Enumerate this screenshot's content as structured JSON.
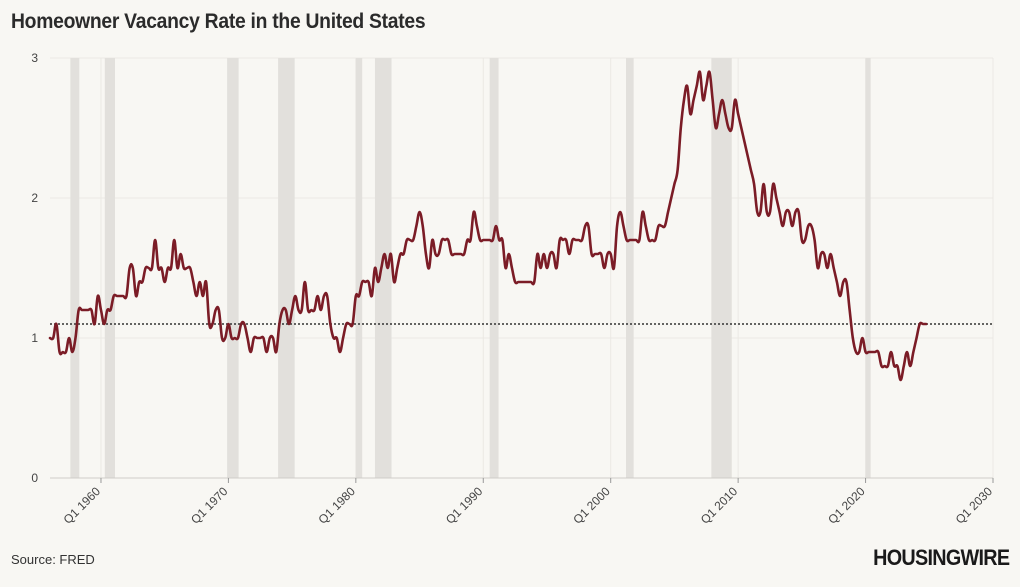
{
  "title": "Homeowner Vacancy Rate in the United States",
  "source": "Source: FRED",
  "brand": "HOUSINGWIRE",
  "colors": {
    "line": "#7b1c26",
    "recession": "#e2e0dc",
    "reference": "#333333",
    "grid": "#ebe9e4",
    "background": "#f8f7f3"
  },
  "chart_data": {
    "type": "line",
    "title": "Homeowner Vacancy Rate in the United States",
    "xlabel": "",
    "ylabel": "",
    "xlim": [
      1956,
      2030
    ],
    "ylim": [
      0,
      3
    ],
    "grid": true,
    "yticks": [
      0,
      1,
      2,
      3
    ],
    "xticks": [
      {
        "value": 1960,
        "label": "Q1 1960"
      },
      {
        "value": 1970,
        "label": "Q1 1970"
      },
      {
        "value": 1980,
        "label": "Q1 1980"
      },
      {
        "value": 1990,
        "label": "Q1 1990"
      },
      {
        "value": 2000,
        "label": "Q1 2000"
      },
      {
        "value": 2010,
        "label": "Q1 2010"
      },
      {
        "value": 2020,
        "label": "Q1 2020"
      },
      {
        "value": 2030,
        "label": "Q1 2030"
      }
    ],
    "reference_line": {
      "y": 1.1,
      "style": "dotted"
    },
    "recessions": [
      [
        1957.6,
        1958.3
      ],
      [
        1960.3,
        1961.1
      ],
      [
        1969.9,
        1970.8
      ],
      [
        1973.9,
        1975.2
      ],
      [
        1980.0,
        1980.5
      ],
      [
        1981.5,
        1982.8
      ],
      [
        1990.5,
        1991.2
      ],
      [
        2001.2,
        2001.8
      ],
      [
        2007.9,
        2009.5
      ],
      [
        2020.0,
        2020.4
      ]
    ],
    "series": [
      {
        "name": "Homeowner Vacancy Rate",
        "points": [
          [
            1956.0,
            1.0
          ],
          [
            1956.25,
            1.0
          ],
          [
            1956.5,
            1.1
          ],
          [
            1956.75,
            0.9
          ],
          [
            1957.0,
            0.9
          ],
          [
            1957.25,
            0.9
          ],
          [
            1957.5,
            1.0
          ],
          [
            1957.75,
            0.9
          ],
          [
            1958.0,
            1.0
          ],
          [
            1958.25,
            1.2
          ],
          [
            1958.5,
            1.2
          ],
          [
            1958.75,
            1.2
          ],
          [
            1959.0,
            1.2
          ],
          [
            1959.25,
            1.2
          ],
          [
            1959.5,
            1.1
          ],
          [
            1959.75,
            1.3
          ],
          [
            1960.0,
            1.2
          ],
          [
            1960.25,
            1.1
          ],
          [
            1960.5,
            1.2
          ],
          [
            1960.75,
            1.2
          ],
          [
            1961.0,
            1.3
          ],
          [
            1961.25,
            1.3
          ],
          [
            1961.5,
            1.3
          ],
          [
            1961.75,
            1.3
          ],
          [
            1962.0,
            1.3
          ],
          [
            1962.25,
            1.5
          ],
          [
            1962.5,
            1.5
          ],
          [
            1962.75,
            1.3
          ],
          [
            1963.0,
            1.4
          ],
          [
            1963.25,
            1.4
          ],
          [
            1963.5,
            1.5
          ],
          [
            1963.75,
            1.5
          ],
          [
            1964.0,
            1.5
          ],
          [
            1964.25,
            1.7
          ],
          [
            1964.5,
            1.5
          ],
          [
            1964.75,
            1.5
          ],
          [
            1965.0,
            1.4
          ],
          [
            1965.25,
            1.5
          ],
          [
            1965.5,
            1.5
          ],
          [
            1965.75,
            1.7
          ],
          [
            1966.0,
            1.5
          ],
          [
            1966.25,
            1.6
          ],
          [
            1966.5,
            1.5
          ],
          [
            1966.75,
            1.5
          ],
          [
            1967.0,
            1.5
          ],
          [
            1967.25,
            1.4
          ],
          [
            1967.5,
            1.3
          ],
          [
            1967.75,
            1.4
          ],
          [
            1968.0,
            1.3
          ],
          [
            1968.25,
            1.4
          ],
          [
            1968.5,
            1.1
          ],
          [
            1968.75,
            1.1
          ],
          [
            1969.0,
            1.2
          ],
          [
            1969.25,
            1.2
          ],
          [
            1969.5,
            1.0
          ],
          [
            1969.75,
            1.0
          ],
          [
            1970.0,
            1.1
          ],
          [
            1970.25,
            1.0
          ],
          [
            1970.5,
            1.0
          ],
          [
            1970.75,
            1.0
          ],
          [
            1971.0,
            1.1
          ],
          [
            1971.25,
            1.1
          ],
          [
            1971.5,
            1.0
          ],
          [
            1971.75,
            0.9
          ],
          [
            1972.0,
            1.0
          ],
          [
            1972.25,
            1.0
          ],
          [
            1972.5,
            1.0
          ],
          [
            1972.75,
            1.0
          ],
          [
            1973.0,
            0.9
          ],
          [
            1973.25,
            1.0
          ],
          [
            1973.5,
            1.0
          ],
          [
            1973.75,
            0.9
          ],
          [
            1974.0,
            1.1
          ],
          [
            1974.25,
            1.2
          ],
          [
            1974.5,
            1.2
          ],
          [
            1974.75,
            1.1
          ],
          [
            1975.0,
            1.2
          ],
          [
            1975.25,
            1.3
          ],
          [
            1975.5,
            1.2
          ],
          [
            1975.75,
            1.2
          ],
          [
            1976.0,
            1.4
          ],
          [
            1976.25,
            1.2
          ],
          [
            1976.5,
            1.2
          ],
          [
            1976.75,
            1.2
          ],
          [
            1977.0,
            1.3
          ],
          [
            1977.25,
            1.2
          ],
          [
            1977.5,
            1.3
          ],
          [
            1977.75,
            1.3
          ],
          [
            1978.0,
            1.1
          ],
          [
            1978.25,
            1.0
          ],
          [
            1978.5,
            1.0
          ],
          [
            1978.75,
            0.9
          ],
          [
            1979.0,
            1.0
          ],
          [
            1979.25,
            1.1
          ],
          [
            1979.5,
            1.1
          ],
          [
            1979.75,
            1.1
          ],
          [
            1980.0,
            1.3
          ],
          [
            1980.25,
            1.3
          ],
          [
            1980.5,
            1.4
          ],
          [
            1980.75,
            1.4
          ],
          [
            1981.0,
            1.4
          ],
          [
            1981.25,
            1.3
          ],
          [
            1981.5,
            1.5
          ],
          [
            1981.75,
            1.4
          ],
          [
            1982.0,
            1.5
          ],
          [
            1982.25,
            1.6
          ],
          [
            1982.5,
            1.5
          ],
          [
            1982.75,
            1.6
          ],
          [
            1983.0,
            1.4
          ],
          [
            1983.25,
            1.5
          ],
          [
            1983.5,
            1.6
          ],
          [
            1983.75,
            1.6
          ],
          [
            1984.0,
            1.7
          ],
          [
            1984.25,
            1.7
          ],
          [
            1984.5,
            1.7
          ],
          [
            1984.75,
            1.8
          ],
          [
            1985.0,
            1.9
          ],
          [
            1985.25,
            1.8
          ],
          [
            1985.5,
            1.6
          ],
          [
            1985.75,
            1.5
          ],
          [
            1986.0,
            1.7
          ],
          [
            1986.25,
            1.6
          ],
          [
            1986.5,
            1.6
          ],
          [
            1986.75,
            1.7
          ],
          [
            1987.0,
            1.7
          ],
          [
            1987.25,
            1.7
          ],
          [
            1987.5,
            1.6
          ],
          [
            1987.75,
            1.6
          ],
          [
            1988.0,
            1.6
          ],
          [
            1988.25,
            1.6
          ],
          [
            1988.5,
            1.6
          ],
          [
            1988.75,
            1.7
          ],
          [
            1989.0,
            1.7
          ],
          [
            1989.25,
            1.9
          ],
          [
            1989.5,
            1.8
          ],
          [
            1989.75,
            1.7
          ],
          [
            1990.0,
            1.7
          ],
          [
            1990.25,
            1.7
          ],
          [
            1990.5,
            1.7
          ],
          [
            1990.75,
            1.7
          ],
          [
            1991.0,
            1.8
          ],
          [
            1991.25,
            1.7
          ],
          [
            1991.5,
            1.7
          ],
          [
            1991.75,
            1.5
          ],
          [
            1992.0,
            1.6
          ],
          [
            1992.25,
            1.5
          ],
          [
            1992.5,
            1.4
          ],
          [
            1992.75,
            1.4
          ],
          [
            1993.0,
            1.4
          ],
          [
            1993.25,
            1.4
          ],
          [
            1993.5,
            1.4
          ],
          [
            1993.75,
            1.4
          ],
          [
            1994.0,
            1.4
          ],
          [
            1994.25,
            1.6
          ],
          [
            1994.5,
            1.5
          ],
          [
            1994.75,
            1.6
          ],
          [
            1995.0,
            1.5
          ],
          [
            1995.25,
            1.6
          ],
          [
            1995.5,
            1.6
          ],
          [
            1995.75,
            1.5
          ],
          [
            1996.0,
            1.7
          ],
          [
            1996.25,
            1.7
          ],
          [
            1996.5,
            1.7
          ],
          [
            1996.75,
            1.6
          ],
          [
            1997.0,
            1.7
          ],
          [
            1997.25,
            1.7
          ],
          [
            1997.5,
            1.7
          ],
          [
            1997.75,
            1.7
          ],
          [
            1998.0,
            1.8
          ],
          [
            1998.25,
            1.8
          ],
          [
            1998.5,
            1.6
          ],
          [
            1998.75,
            1.6
          ],
          [
            1999.0,
            1.6
          ],
          [
            1999.25,
            1.6
          ],
          [
            1999.5,
            1.5
          ],
          [
            1999.75,
            1.6
          ],
          [
            2000.0,
            1.6
          ],
          [
            2000.25,
            1.5
          ],
          [
            2000.5,
            1.8
          ],
          [
            2000.75,
            1.9
          ],
          [
            2001.0,
            1.8
          ],
          [
            2001.25,
            1.7
          ],
          [
            2001.5,
            1.7
          ],
          [
            2001.75,
            1.7
          ],
          [
            2002.0,
            1.7
          ],
          [
            2002.25,
            1.7
          ],
          [
            2002.5,
            1.9
          ],
          [
            2002.75,
            1.8
          ],
          [
            2003.0,
            1.7
          ],
          [
            2003.25,
            1.7
          ],
          [
            2003.5,
            1.7
          ],
          [
            2003.75,
            1.8
          ],
          [
            2004.0,
            1.8
          ],
          [
            2004.25,
            1.8
          ],
          [
            2004.5,
            1.9
          ],
          [
            2004.75,
            2.0
          ],
          [
            2005.0,
            2.1
          ],
          [
            2005.25,
            2.2
          ],
          [
            2005.5,
            2.5
          ],
          [
            2005.75,
            2.7
          ],
          [
            2006.0,
            2.8
          ],
          [
            2006.25,
            2.6
          ],
          [
            2006.5,
            2.7
          ],
          [
            2006.75,
            2.8
          ],
          [
            2007.0,
            2.9
          ],
          [
            2007.25,
            2.7
          ],
          [
            2007.5,
            2.8
          ],
          [
            2007.75,
            2.9
          ],
          [
            2008.0,
            2.7
          ],
          [
            2008.25,
            2.5
          ],
          [
            2008.5,
            2.6
          ],
          [
            2008.75,
            2.7
          ],
          [
            2009.0,
            2.6
          ],
          [
            2009.25,
            2.5
          ],
          [
            2009.5,
            2.5
          ],
          [
            2009.75,
            2.7
          ],
          [
            2010.0,
            2.6
          ],
          [
            2010.25,
            2.5
          ],
          [
            2010.5,
            2.4
          ],
          [
            2010.75,
            2.3
          ],
          [
            2011.0,
            2.2
          ],
          [
            2011.25,
            2.1
          ],
          [
            2011.5,
            1.9
          ],
          [
            2011.75,
            1.9
          ],
          [
            2012.0,
            2.1
          ],
          [
            2012.25,
            1.9
          ],
          [
            2012.5,
            1.9
          ],
          [
            2012.75,
            2.1
          ],
          [
            2013.0,
            2.0
          ],
          [
            2013.25,
            1.9
          ],
          [
            2013.5,
            1.8
          ],
          [
            2013.75,
            1.9
          ],
          [
            2014.0,
            1.9
          ],
          [
            2014.25,
            1.8
          ],
          [
            2014.5,
            1.9
          ],
          [
            2014.75,
            1.9
          ],
          [
            2015.0,
            1.7
          ],
          [
            2015.25,
            1.7
          ],
          [
            2015.5,
            1.8
          ],
          [
            2015.75,
            1.8
          ],
          [
            2016.0,
            1.7
          ],
          [
            2016.25,
            1.5
          ],
          [
            2016.5,
            1.6
          ],
          [
            2016.75,
            1.6
          ],
          [
            2017.0,
            1.5
          ],
          [
            2017.25,
            1.6
          ],
          [
            2017.5,
            1.5
          ],
          [
            2017.75,
            1.4
          ],
          [
            2018.0,
            1.3
          ],
          [
            2018.25,
            1.4
          ],
          [
            2018.5,
            1.4
          ],
          [
            2018.75,
            1.2
          ],
          [
            2019.0,
            1.0
          ],
          [
            2019.25,
            0.9
          ],
          [
            2019.5,
            0.9
          ],
          [
            2019.75,
            1.0
          ],
          [
            2020.0,
            0.9
          ],
          [
            2020.25,
            0.9
          ],
          [
            2020.5,
            0.9
          ],
          [
            2020.75,
            0.9
          ],
          [
            2021.0,
            0.9
          ],
          [
            2021.25,
            0.8
          ],
          [
            2021.5,
            0.8
          ],
          [
            2021.75,
            0.8
          ],
          [
            2022.0,
            0.9
          ],
          [
            2022.25,
            0.8
          ],
          [
            2022.5,
            0.8
          ],
          [
            2022.75,
            0.7
          ],
          [
            2023.0,
            0.8
          ],
          [
            2023.25,
            0.9
          ],
          [
            2023.5,
            0.8
          ],
          [
            2023.75,
            0.9
          ],
          [
            2024.0,
            1.0
          ],
          [
            2024.25,
            1.1
          ],
          [
            2024.5,
            1.1
          ],
          [
            2024.75,
            1.1
          ]
        ]
      }
    ]
  }
}
